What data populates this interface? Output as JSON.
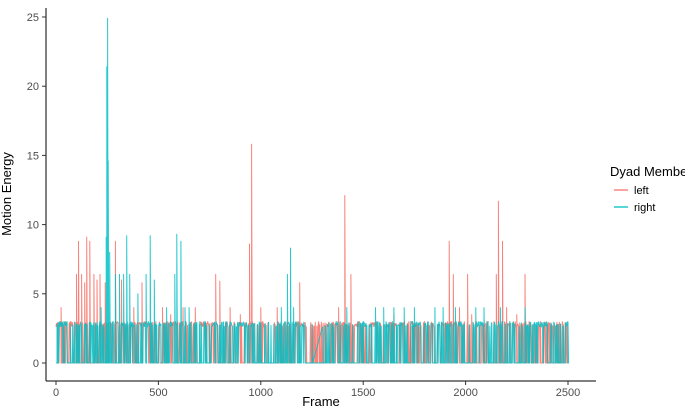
{
  "chart_data": {
    "type": "line",
    "xlabel": "Frame",
    "ylabel": "Motion Energy",
    "xlim": [
      0,
      2500
    ],
    "ylim": [
      0,
      25
    ],
    "xticks": [
      0,
      500,
      1000,
      1500,
      2000,
      2500
    ],
    "yticks": [
      0,
      5,
      10,
      15,
      20,
      25
    ],
    "grid": false,
    "legend": {
      "title": "Dyad Member",
      "placement": "right"
    },
    "series": [
      {
        "name": "left",
        "color": "#f8766d",
        "peaks": [
          [
            25,
            4.0
          ],
          [
            70,
            3.0
          ],
          [
            100,
            6.4
          ],
          [
            110,
            8.8
          ],
          [
            125,
            6.4
          ],
          [
            140,
            5.8
          ],
          [
            150,
            9.1
          ],
          [
            165,
            8.8
          ],
          [
            185,
            6.4
          ],
          [
            200,
            6.0
          ],
          [
            215,
            6.4
          ],
          [
            240,
            5.8
          ],
          [
            290,
            8.8
          ],
          [
            320,
            6.0
          ],
          [
            380,
            4.0
          ],
          [
            420,
            5.8
          ],
          [
            520,
            4.0
          ],
          [
            560,
            3.5
          ],
          [
            620,
            4.0
          ],
          [
            680,
            4.0
          ],
          [
            780,
            6.4
          ],
          [
            800,
            5.9
          ],
          [
            850,
            4.0
          ],
          [
            900,
            3.5
          ],
          [
            945,
            8.6
          ],
          [
            955,
            15.8
          ],
          [
            1000,
            4.0
          ],
          [
            1080,
            4.0
          ],
          [
            1190,
            5.8
          ],
          [
            1250,
            2.5
          ],
          [
            1380,
            4.0
          ],
          [
            1410,
            12.1
          ],
          [
            1440,
            6.4
          ],
          [
            1480,
            3.0
          ],
          [
            1650,
            3.5
          ],
          [
            1800,
            3.0
          ],
          [
            1920,
            8.8
          ],
          [
            1940,
            6.4
          ],
          [
            1970,
            4.0
          ],
          [
            2010,
            6.4
          ],
          [
            2030,
            3.5
          ],
          [
            2090,
            3.0
          ],
          [
            2150,
            6.4
          ],
          [
            2160,
            11.7
          ],
          [
            2180,
            8.8
          ],
          [
            2200,
            4.0
          ],
          [
            2250,
            3.5
          ],
          [
            2290,
            6.4
          ],
          [
            2310,
            3.0
          ],
          [
            2400,
            2.5
          ],
          [
            2460,
            2.8
          ]
        ]
      },
      {
        "name": "right",
        "color": "#00bfc4",
        "peaks": [
          [
            5,
            2.8
          ],
          [
            40,
            2.8
          ],
          [
            70,
            2.8
          ],
          [
            100,
            2.8
          ],
          [
            150,
            2.8
          ],
          [
            220,
            4.0
          ],
          [
            245,
            9.1
          ],
          [
            248,
            21.4
          ],
          [
            252,
            24.9
          ],
          [
            255,
            14.6
          ],
          [
            262,
            8.0
          ],
          [
            290,
            6.4
          ],
          [
            310,
            6.4
          ],
          [
            330,
            6.4
          ],
          [
            345,
            9.2
          ],
          [
            360,
            6.4
          ],
          [
            400,
            5.0
          ],
          [
            440,
            6.4
          ],
          [
            460,
            9.2
          ],
          [
            480,
            6.0
          ],
          [
            540,
            4.0
          ],
          [
            580,
            6.4
          ],
          [
            590,
            9.3
          ],
          [
            610,
            8.8
          ],
          [
            630,
            4.0
          ],
          [
            650,
            4.0
          ],
          [
            700,
            2.8
          ],
          [
            750,
            2.8
          ],
          [
            850,
            2.8
          ],
          [
            1000,
            2.8
          ],
          [
            1100,
            4.0
          ],
          [
            1130,
            6.4
          ],
          [
            1145,
            8.3
          ],
          [
            1160,
            4.0
          ],
          [
            1250,
            2.8
          ],
          [
            1350,
            2.8
          ],
          [
            1420,
            4.0
          ],
          [
            1500,
            3.0
          ],
          [
            1560,
            4.0
          ],
          [
            1600,
            4.0
          ],
          [
            1650,
            4.0
          ],
          [
            1700,
            4.0
          ],
          [
            1750,
            4.0
          ],
          [
            1850,
            4.0
          ],
          [
            1890,
            4.0
          ],
          [
            1950,
            4.0
          ],
          [
            2050,
            4.0
          ],
          [
            2090,
            4.0
          ],
          [
            2170,
            4.0
          ],
          [
            2290,
            4.0
          ],
          [
            2350,
            2.8
          ],
          [
            2400,
            2.8
          ],
          [
            2450,
            2.8
          ],
          [
            2500,
            2.8
          ]
        ],
        "gaps": [
          [
            1215,
            1300
          ]
        ]
      }
    ]
  }
}
